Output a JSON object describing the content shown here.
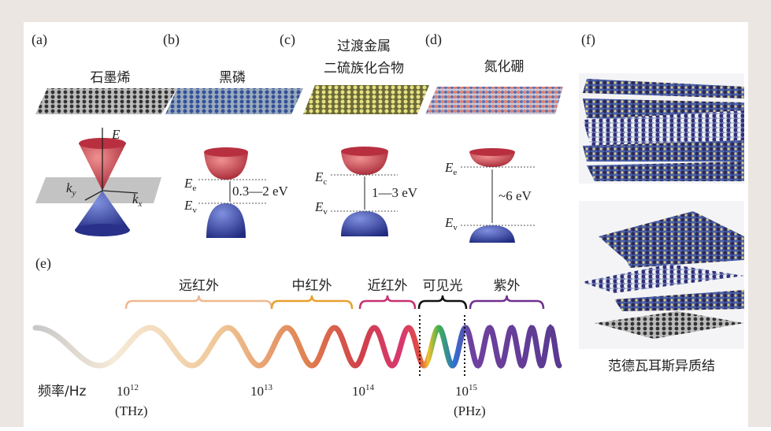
{
  "panel_a": {
    "label": "(a)",
    "title": "石墨烯",
    "axis_e": "E",
    "axis_ky": {
      "base": "k",
      "sub": "y"
    },
    "axis_kx": {
      "base": "k",
      "sub": "x"
    }
  },
  "panel_b": {
    "label": "(b)",
    "title": "黑磷",
    "upper": {
      "base": "E",
      "sub": "e"
    },
    "lower": {
      "base": "E",
      "sub": "v"
    },
    "gap": "0.3—2 eV"
  },
  "panel_c": {
    "label": "(c)",
    "title_lines": [
      "过渡金属",
      "二硫族化合物"
    ],
    "upper": {
      "base": "E",
      "sub": "c"
    },
    "lower": {
      "base": "E",
      "sub": "v"
    },
    "gap": "1—3 eV"
  },
  "panel_d": {
    "label": "(d)",
    "title": "氮化硼",
    "upper": {
      "base": "E",
      "sub": "e"
    },
    "lower": {
      "base": "E",
      "sub": "v"
    },
    "gap": "~6 eV"
  },
  "panel_e": {
    "label": "(e)",
    "bands": [
      "远红外",
      "中红外",
      "近红外",
      "可见光",
      "紫外"
    ],
    "axis_label": "频率/Hz",
    "ticks": [
      {
        "base": "10",
        "sup": "12",
        "unit": "(THz)"
      },
      {
        "base": "10",
        "sup": "13"
      },
      {
        "base": "10",
        "sup": "14"
      },
      {
        "base": "10",
        "sup": "15",
        "unit": "(PHz)"
      }
    ]
  },
  "panel_f": {
    "label": "(f)",
    "caption": "范德瓦耳斯异质结"
  }
}
